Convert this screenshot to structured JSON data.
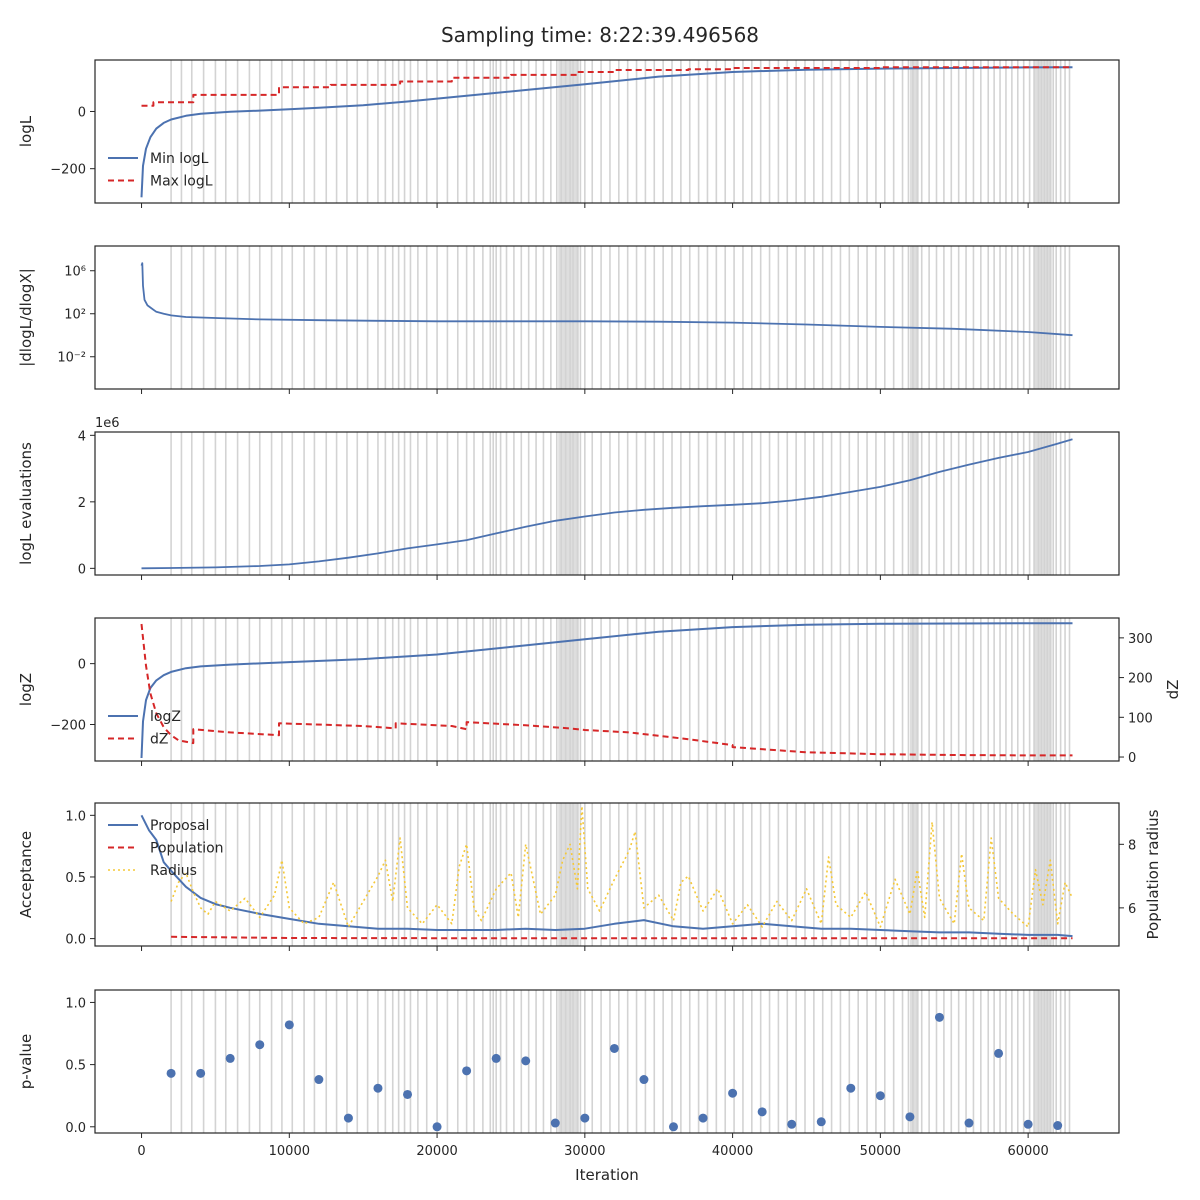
{
  "figure": {
    "title": "Sampling time: 8:22:39.496568",
    "xlabel": "Iteration"
  },
  "colors": {
    "blue": "#4c72b0",
    "red": "#d62728",
    "gold": "#f5c836",
    "shade": "#d3d3d3",
    "axis": "#262626"
  },
  "chart_data": [
    {
      "type": "line",
      "ylabel": "logL",
      "xlim": [
        -3150,
        66150
      ],
      "ylim": [
        -320,
        180
      ],
      "xticks": [
        0,
        10000,
        20000,
        30000,
        40000,
        50000,
        60000
      ],
      "yticks": [
        {
          "v": -200,
          "l": "−200"
        },
        {
          "v": 0,
          "l": "0"
        }
      ],
      "legend": [
        "Min logL",
        "Max logL"
      ],
      "series": [
        {
          "name": "Min logL",
          "x": [
            0,
            100,
            300,
            600,
            1000,
            1500,
            2000,
            3000,
            4000,
            6000,
            8000,
            10000,
            12000,
            15000,
            18000,
            22000,
            26000,
            30000,
            35000,
            40000,
            45000,
            50000,
            55000,
            60000,
            63000
          ],
          "y": [
            -300,
            -190,
            -130,
            -90,
            -60,
            -40,
            -28,
            -15,
            -8,
            -1,
            3,
            8,
            13,
            22,
            35,
            55,
            75,
            95,
            122,
            138,
            146,
            150,
            152,
            154,
            155
          ]
        },
        {
          "name": "Max logL",
          "x": [
            0,
            800,
            800,
            1600,
            1600,
            3500,
            3500,
            9300,
            9300,
            12800,
            12800,
            17500,
            17500,
            21000,
            21000,
            25000,
            25000,
            29500,
            29500,
            32000,
            32000,
            37000,
            37000,
            40000,
            40000,
            50000,
            50000,
            63000
          ],
          "y": [
            20,
            20,
            32,
            32,
            32,
            32,
            58,
            58,
            85,
            85,
            93,
            93,
            105,
            105,
            118,
            118,
            128,
            128,
            138,
            138,
            145,
            145,
            148,
            148,
            152,
            152,
            155,
            155
          ]
        }
      ]
    },
    {
      "type": "line",
      "ylabel": "|dlogL/dlogX|",
      "log_y": true,
      "xlim": [
        -3150,
        66150
      ],
      "ylim": [
        1e-05,
        200000000
      ],
      "xticks": [
        0,
        10000,
        20000,
        30000,
        40000,
        50000,
        60000
      ],
      "yticks": [
        {
          "v": 0.01,
          "l": "10⁻²"
        },
        {
          "v": 100,
          "l": "10²"
        },
        {
          "v": 1000000,
          "l": "10⁶"
        }
      ],
      "series": [
        {
          "name": "",
          "x": [
            0,
            50,
            100,
            200,
            400,
            700,
            1000,
            1500,
            2000,
            3000,
            5000,
            8000,
            12000,
            16000,
            20000,
            25000,
            30000,
            35000,
            40000,
            45000,
            50000,
            55000,
            60000,
            63000
          ],
          "y": [
            3000000,
            5000000,
            40000,
            2000,
            600,
            300,
            150,
            100,
            70,
            50,
            40,
            30,
            25,
            22,
            20,
            20,
            20,
            18,
            15,
            10,
            6,
            4,
            2,
            1
          ]
        }
      ]
    },
    {
      "type": "line",
      "ylabel": "logL evaluations",
      "offset_label": "1e6",
      "xlim": [
        -3150,
        66150
      ],
      "ylim": [
        -200000,
        4100000
      ],
      "xticks": [
        0,
        10000,
        20000,
        30000,
        40000,
        50000,
        60000
      ],
      "yticks": [
        {
          "v": 0,
          "l": "0"
        },
        {
          "v": 2000000,
          "l": "2"
        },
        {
          "v": 4000000,
          "l": "4"
        }
      ],
      "series": [
        {
          "name": "",
          "x": [
            0,
            2000,
            5000,
            8000,
            10000,
            12000,
            14000,
            16000,
            18000,
            20000,
            22000,
            24000,
            26000,
            28000,
            30000,
            32000,
            34000,
            36000,
            38000,
            40000,
            42000,
            44000,
            46000,
            48000,
            50000,
            52000,
            54000,
            56000,
            58000,
            60000,
            62000,
            63000
          ],
          "y": [
            0,
            10000,
            30000,
            70000,
            120000,
            210000,
            320000,
            450000,
            600000,
            720000,
            850000,
            1050000,
            1250000,
            1430000,
            1560000,
            1680000,
            1760000,
            1820000,
            1870000,
            1910000,
            1960000,
            2040000,
            2150000,
            2300000,
            2450000,
            2650000,
            2900000,
            3120000,
            3320000,
            3500000,
            3750000,
            3880000
          ]
        }
      ]
    },
    {
      "type": "line",
      "ylabel": "logZ",
      "ylabel_right": "dZ",
      "xlim": [
        -3150,
        66150
      ],
      "ylim": [
        -320,
        150
      ],
      "ylim_right": [
        -10,
        350
      ],
      "xticks": [
        0,
        10000,
        20000,
        30000,
        40000,
        50000,
        60000
      ],
      "yticks": [
        {
          "v": -200,
          "l": "−200"
        },
        {
          "v": 0,
          "l": "0"
        }
      ],
      "yticks_right": [
        {
          "v": 0,
          "l": "0"
        },
        {
          "v": 100,
          "l": "100"
        },
        {
          "v": 200,
          "l": "200"
        },
        {
          "v": 300,
          "l": "300"
        }
      ],
      "legend": [
        "logZ",
        "dZ"
      ],
      "series": [
        {
          "name": "logZ",
          "axis": "left",
          "x": [
            0,
            100,
            300,
            600,
            1000,
            1500,
            2000,
            3000,
            4000,
            6000,
            10000,
            15000,
            20000,
            25000,
            30000,
            35000,
            40000,
            45000,
            50000,
            55000,
            60000,
            63000
          ],
          "y": [
            -310,
            -190,
            -120,
            -80,
            -55,
            -38,
            -27,
            -15,
            -9,
            -3,
            5,
            15,
            30,
            55,
            80,
            105,
            120,
            128,
            131,
            132,
            133,
            133
          ]
        },
        {
          "name": "dZ",
          "axis": "right",
          "x": [
            0,
            300,
            600,
            1000,
            1500,
            2000,
            2500,
            3500,
            3500,
            6000,
            9300,
            9300,
            15000,
            17200,
            17200,
            21000,
            22000,
            22000,
            26000,
            29000,
            30000,
            33000,
            37000,
            40000,
            40000,
            45000,
            50000,
            55000,
            60000,
            63000
          ],
          "y": [
            335,
            230,
            160,
            110,
            75,
            55,
            42,
            35,
            70,
            62,
            55,
            85,
            78,
            72,
            85,
            78,
            70,
            88,
            80,
            72,
            68,
            62,
            45,
            30,
            25,
            12,
            7,
            5,
            4,
            4
          ]
        }
      ]
    },
    {
      "type": "line",
      "ylabel": "Acceptance",
      "ylabel_right": "Population radius",
      "xlim": [
        -3150,
        66150
      ],
      "ylim": [
        -0.06,
        1.1
      ],
      "ylim_right": [
        4.8,
        9.3
      ],
      "xticks": [
        0,
        10000,
        20000,
        30000,
        40000,
        50000,
        60000
      ],
      "yticks": [
        {
          "v": 0,
          "l": "0.0"
        },
        {
          "v": 0.5,
          "l": "0.5"
        },
        {
          "v": 1,
          "l": "1.0"
        }
      ],
      "yticks_right": [
        {
          "v": 6,
          "l": "6"
        },
        {
          "v": 8,
          "l": "8"
        }
      ],
      "legend": [
        "Proposal",
        "Population",
        "Radius"
      ],
      "series": [
        {
          "name": "Proposal",
          "axis": "left",
          "x": [
            0,
            500,
            1000,
            1500,
            2000,
            3000,
            4000,
            5000,
            6000,
            8000,
            10000,
            12000,
            14000,
            16000,
            18000,
            20000,
            22000,
            24000,
            26000,
            28000,
            30000,
            32000,
            34000,
            36000,
            38000,
            40000,
            42000,
            44000,
            46000,
            48000,
            50000,
            52000,
            54000,
            56000,
            58000,
            60000,
            62000,
            63000
          ],
          "y": [
            1.0,
            0.88,
            0.8,
            0.62,
            0.55,
            0.42,
            0.33,
            0.28,
            0.25,
            0.2,
            0.16,
            0.12,
            0.1,
            0.08,
            0.08,
            0.07,
            0.07,
            0.07,
            0.08,
            0.07,
            0.08,
            0.12,
            0.15,
            0.1,
            0.08,
            0.1,
            0.12,
            0.1,
            0.08,
            0.08,
            0.07,
            0.06,
            0.05,
            0.05,
            0.04,
            0.03,
            0.03,
            0.02
          ]
        },
        {
          "name": "Population",
          "axis": "left",
          "x": [
            2000,
            4000,
            10000,
            20000,
            30000,
            40000,
            50000,
            63000
          ],
          "y": [
            0.015,
            0.012,
            0.005,
            0.003,
            0.003,
            0.003,
            0.003,
            0.003
          ]
        },
        {
          "name": "Radius",
          "axis": "right",
          "x": [
            2000,
            2500,
            3000,
            3500,
            4000,
            4500,
            5000,
            6000,
            7000,
            8000,
            9000,
            9500,
            10000,
            11000,
            12000,
            13000,
            14000,
            15000,
            16000,
            16500,
            17000,
            17500,
            18000,
            19000,
            20000,
            21000,
            21500,
            22000,
            22500,
            23000,
            24000,
            25000,
            25500,
            26000,
            27000,
            28000,
            28500,
            29000,
            29500,
            29800,
            30200,
            31000,
            32000,
            33000,
            33400,
            34000,
            35000,
            36000,
            36500,
            37000,
            38000,
            39000,
            40000,
            41000,
            42000,
            43000,
            44000,
            45000,
            46000,
            46500,
            47000,
            48000,
            49000,
            50000,
            51000,
            52000,
            52500,
            53000,
            53500,
            54000,
            55000,
            55500,
            56000,
            57000,
            57500,
            58000,
            59000,
            60000,
            60500,
            61000,
            61500,
            62000,
            62500,
            63000
          ],
          "y": [
            6.2,
            6.8,
            7.1,
            6.5,
            6.0,
            5.8,
            6.2,
            5.9,
            6.3,
            5.7,
            6.4,
            7.5,
            6.0,
            5.5,
            5.7,
            6.8,
            5.4,
            6.2,
            7.0,
            7.5,
            6.2,
            8.2,
            6.0,
            5.5,
            6.1,
            5.5,
            7.3,
            8.0,
            6.0,
            5.6,
            6.6,
            7.1,
            5.7,
            8.0,
            5.8,
            6.4,
            7.5,
            8.0,
            6.6,
            9.2,
            6.6,
            5.9,
            6.9,
            7.8,
            8.4,
            6.0,
            6.4,
            5.6,
            6.8,
            7.0,
            5.9,
            6.6,
            5.5,
            6.1,
            5.4,
            6.2,
            5.6,
            6.6,
            5.5,
            7.6,
            6.1,
            5.7,
            6.5,
            5.4,
            6.9,
            5.8,
            7.2,
            5.7,
            8.7,
            6.3,
            5.5,
            7.7,
            6.0,
            5.6,
            8.2,
            6.3,
            5.8,
            5.4,
            7.2,
            6.1,
            7.5,
            5.5,
            6.8,
            6.3
          ]
        }
      ]
    },
    {
      "type": "scatter",
      "ylabel": "p-value",
      "xlim": [
        -3150,
        66150
      ],
      "ylim": [
        -0.05,
        1.1
      ],
      "xticks": [
        0,
        10000,
        20000,
        30000,
        40000,
        50000,
        60000
      ],
      "yticks": [
        {
          "v": 0,
          "l": "0.0"
        },
        {
          "v": 0.5,
          "l": "0.5"
        },
        {
          "v": 1,
          "l": "1.0"
        }
      ],
      "xticks_labeled": true,
      "series": [
        {
          "name": "",
          "x": [
            2000,
            4000,
            6000,
            8000,
            10000,
            12000,
            14000,
            16000,
            18000,
            20000,
            22000,
            24000,
            26000,
            28000,
            30000,
            32000,
            34000,
            36000,
            38000,
            40000,
            42000,
            44000,
            46000,
            48000,
            50000,
            52000,
            54000,
            56000,
            58000,
            60000,
            62000
          ],
          "y": [
            0.43,
            0.43,
            0.55,
            0.66,
            0.82,
            0.38,
            0.07,
            0.31,
            0.26,
            0.0,
            0.45,
            0.55,
            0.53,
            0.03,
            0.07,
            0.63,
            0.38,
            0.0,
            0.07,
            0.27,
            0.12,
            0.02,
            0.04,
            0.31,
            0.25,
            0.08,
            0.88,
            0.03,
            0.59,
            0.02,
            0.01
          ]
        }
      ]
    }
  ],
  "shading_lines": [
    2000,
    2700,
    3400,
    4200,
    5000,
    5700,
    6500,
    7300,
    8000,
    8800,
    9500,
    10200,
    11000,
    11700,
    12500,
    13200,
    13900,
    14600,
    15300,
    16000,
    16500,
    17000,
    17400,
    17800,
    18200,
    18700,
    19300,
    20000,
    20700,
    21400,
    22000,
    22500,
    23100,
    23600,
    23800,
    24000,
    24300,
    24700,
    25200,
    25700,
    26200,
    26700,
    27200,
    27700,
    28100,
    28400,
    28700,
    29000,
    29200,
    29500,
    29700,
    30000,
    30500,
    31100,
    31700,
    32300,
    32900,
    33500,
    34100,
    34700,
    35300,
    35900,
    36500,
    37100,
    37700,
    38300,
    38900,
    39500,
    40100,
    40700,
    41300,
    41900,
    42500,
    43100,
    43700,
    44300,
    44900,
    45500,
    46100,
    46700,
    47300,
    47900,
    48500,
    49100,
    49700,
    50300,
    50900,
    51500,
    51900,
    52200,
    52500,
    52800,
    53300,
    53800,
    54300,
    54800,
    55300,
    55800,
    56300,
    56800,
    57300,
    57700,
    58100,
    58500,
    58900,
    59300,
    59700,
    60100,
    60400,
    60700,
    60900,
    61100,
    61300,
    61500,
    61700,
    61900,
    62200,
    62500,
    62800
  ],
  "shading_bands": [
    [
      28200,
      29600
    ],
    [
      52000,
      52600
    ],
    [
      60400,
      61600
    ]
  ]
}
